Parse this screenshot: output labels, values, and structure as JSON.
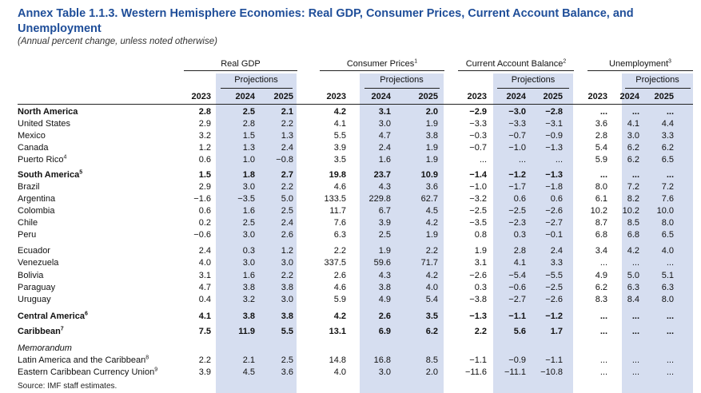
{
  "title": "Annex Table 1.1.3. Western Hemisphere Economies: Real GDP, Consumer Prices, Current Account Balance, and Unemployment",
  "subtitle": "(Annual percent change, unless noted otherwise)",
  "groups": [
    {
      "label": "Real GDP",
      "note": ""
    },
    {
      "label": "Consumer Prices",
      "note": "1"
    },
    {
      "label": "Current Account Balance",
      "note": "2"
    },
    {
      "label": "Unemployment",
      "note": "3"
    }
  ],
  "projections_label": "Projections",
  "years": [
    "2023",
    "2024",
    "2025"
  ],
  "rows": [
    {
      "label": "North America",
      "note": "",
      "style": "bold",
      "values": [
        "2.8",
        "2.5",
        "2.1",
        "4.2",
        "3.1",
        "2.0",
        "-2.9",
        "-3.0",
        "-2.8",
        "...",
        "...",
        "..."
      ]
    },
    {
      "label": "United States",
      "note": "",
      "style": "",
      "values": [
        "2.9",
        "2.8",
        "2.2",
        "4.1",
        "3.0",
        "1.9",
        "-3.3",
        "-3.3",
        "-3.1",
        "3.6",
        "4.1",
        "4.4"
      ]
    },
    {
      "label": "Mexico",
      "note": "",
      "style": "",
      "values": [
        "3.2",
        "1.5",
        "1.3",
        "5.5",
        "4.7",
        "3.8",
        "-0.3",
        "-0.7",
        "-0.9",
        "2.8",
        "3.0",
        "3.3"
      ]
    },
    {
      "label": "Canada",
      "note": "",
      "style": "",
      "values": [
        "1.2",
        "1.3",
        "2.4",
        "3.9",
        "2.4",
        "1.9",
        "-0.7",
        "-1.0",
        "-1.3",
        "5.4",
        "6.2",
        "6.2"
      ]
    },
    {
      "label": "Puerto Rico",
      "note": "4",
      "style": "",
      "values": [
        "0.6",
        "1.0",
        "-0.8",
        "3.5",
        "1.6",
        "1.9",
        "...",
        "...",
        "...",
        "5.9",
        "6.2",
        "6.5"
      ]
    },
    {
      "label": "South America",
      "note": "5",
      "style": "bold",
      "values": [
        "1.5",
        "1.8",
        "2.7",
        "19.8",
        "23.7",
        "10.9",
        "-1.4",
        "-1.2",
        "-1.3",
        "...",
        "...",
        "..."
      ]
    },
    {
      "label": "Brazil",
      "note": "",
      "style": "",
      "values": [
        "2.9",
        "3.0",
        "2.2",
        "4.6",
        "4.3",
        "3.6",
        "-1.0",
        "-1.7",
        "-1.8",
        "8.0",
        "7.2",
        "7.2"
      ]
    },
    {
      "label": "Argentina",
      "note": "",
      "style": "",
      "values": [
        "-1.6",
        "-3.5",
        "5.0",
        "133.5",
        "229.8",
        "62.7",
        "-3.2",
        "0.6",
        "0.6",
        "6.1",
        "8.2",
        "7.6"
      ]
    },
    {
      "label": "Colombia",
      "note": "",
      "style": "",
      "values": [
        "0.6",
        "1.6",
        "2.5",
        "11.7",
        "6.7",
        "4.5",
        "-2.5",
        "-2.5",
        "-2.6",
        "10.2",
        "10.2",
        "10.0"
      ]
    },
    {
      "label": "Chile",
      "note": "",
      "style": "",
      "values": [
        "0.2",
        "2.5",
        "2.4",
        "7.6",
        "3.9",
        "4.2",
        "-3.5",
        "-2.3",
        "-2.7",
        "8.7",
        "8.5",
        "8.0"
      ]
    },
    {
      "label": "Peru",
      "note": "",
      "style": "",
      "values": [
        "-0.6",
        "3.0",
        "2.6",
        "6.3",
        "2.5",
        "1.9",
        "0.8",
        "0.3",
        "-0.1",
        "6.8",
        "6.8",
        "6.5"
      ]
    },
    {
      "label": "Ecuador",
      "note": "",
      "style": "",
      "values": [
        "2.4",
        "0.3",
        "1.2",
        "2.2",
        "1.9",
        "2.2",
        "1.9",
        "2.8",
        "2.4",
        "3.4",
        "4.2",
        "4.0"
      ]
    },
    {
      "label": "Venezuela",
      "note": "",
      "style": "",
      "values": [
        "4.0",
        "3.0",
        "3.0",
        "337.5",
        "59.6",
        "71.7",
        "3.1",
        "4.1",
        "3.3",
        "...",
        "...",
        "..."
      ]
    },
    {
      "label": "Bolivia",
      "note": "",
      "style": "",
      "values": [
        "3.1",
        "1.6",
        "2.2",
        "2.6",
        "4.3",
        "4.2",
        "-2.6",
        "-5.4",
        "-5.5",
        "4.9",
        "5.0",
        "5.1"
      ]
    },
    {
      "label": "Paraguay",
      "note": "",
      "style": "",
      "values": [
        "4.7",
        "3.8",
        "3.8",
        "4.6",
        "3.8",
        "4.0",
        "0.3",
        "-0.6",
        "-2.5",
        "6.2",
        "6.3",
        "6.3"
      ]
    },
    {
      "label": "Uruguay",
      "note": "",
      "style": "",
      "values": [
        "0.4",
        "3.2",
        "3.0",
        "5.9",
        "4.9",
        "5.4",
        "-3.8",
        "-2.7",
        "-2.6",
        "8.3",
        "8.4",
        "8.0"
      ]
    },
    {
      "label": "Central America",
      "note": "6",
      "style": "bold",
      "values": [
        "4.1",
        "3.8",
        "3.8",
        "4.2",
        "2.6",
        "3.5",
        "-1.3",
        "-1.1",
        "-1.2",
        "...",
        "...",
        "..."
      ]
    },
    {
      "label": "Caribbean",
      "note": "7",
      "style": "bold",
      "values": [
        "7.5",
        "11.9",
        "5.5",
        "13.1",
        "6.9",
        "6.2",
        "2.2",
        "5.6",
        "1.7",
        "...",
        "...",
        "..."
      ]
    },
    {
      "label": "Memorandum",
      "note": "",
      "style": "italic",
      "values": []
    },
    {
      "label": "Latin America and the Caribbean",
      "note": "8",
      "style": "",
      "values": [
        "2.2",
        "2.1",
        "2.5",
        "14.8",
        "16.8",
        "8.5",
        "-1.1",
        "-0.9",
        "-1.1",
        "...",
        "...",
        "..."
      ]
    },
    {
      "label": "Eastern Caribbean Currency Union",
      "note": "9",
      "style": "",
      "values": [
        "3.9",
        "4.5",
        "3.6",
        "4.0",
        "3.0",
        "2.0",
        "-11.6",
        "-11.1",
        "-10.8",
        "...",
        "...",
        "..."
      ]
    }
  ],
  "source": "Source: IMF staff estimates."
}
